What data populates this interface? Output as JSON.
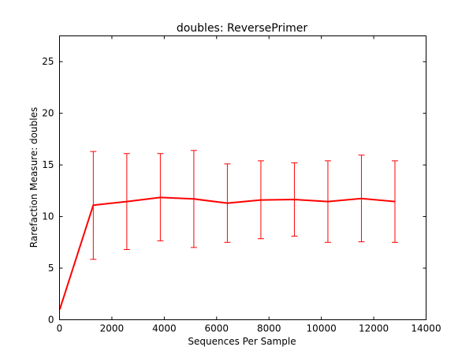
{
  "chart_data": {
    "type": "line",
    "title": "doubles: ReversePrimer",
    "xlabel": "Sequences Per Sample",
    "ylabel": "Rarefaction Measure: doubles",
    "xlim": [
      0,
      14000
    ],
    "ylim": [
      0,
      27.5
    ],
    "x_ticks": [
      0,
      2000,
      4000,
      6000,
      8000,
      10000,
      12000,
      14000
    ],
    "y_ticks": [
      0,
      5,
      10,
      15,
      20,
      25
    ],
    "grid": false,
    "legend": "none",
    "series": [
      {
        "color": "#ff0000",
        "x": [
          10,
          1290,
          2570,
          3850,
          5130,
          6410,
          7690,
          8970,
          10250,
          11530,
          12810
        ],
        "y": [
          1.0,
          11.1,
          11.45,
          11.85,
          11.7,
          11.3,
          11.6,
          11.65,
          11.45,
          11.75,
          11.45
        ],
        "err_low": [
          null,
          5.85,
          6.8,
          7.65,
          7.0,
          7.5,
          7.85,
          8.1,
          7.5,
          7.55,
          7.5
        ],
        "err_high": [
          null,
          16.3,
          16.1,
          16.1,
          16.4,
          15.1,
          15.4,
          15.2,
          15.4,
          15.95,
          15.4
        ]
      }
    ]
  }
}
